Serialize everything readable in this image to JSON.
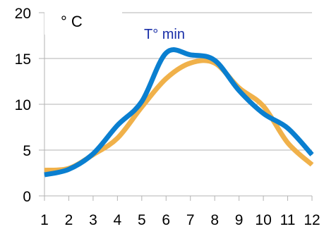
{
  "chart_data": {
    "type": "line",
    "unit_label": "° C",
    "x": [
      1,
      2,
      3,
      4,
      5,
      6,
      7,
      8,
      9,
      10,
      11,
      12
    ],
    "xlim": [
      1,
      12
    ],
    "ylim": [
      0,
      20
    ],
    "yticks": [
      0,
      5,
      10,
      15,
      20
    ],
    "grid": true,
    "series": [
      {
        "name": "T° min",
        "color": "#0a7fd0",
        "values": [
          2.3,
          2.9,
          4.6,
          7.7,
          10.3,
          15.6,
          15.4,
          14.8,
          11.5,
          9.0,
          7.4,
          4.5
        ]
      },
      {
        "color": "#f0b14a",
        "values": [
          2.8,
          3.0,
          4.5,
          6.3,
          9.7,
          12.8,
          14.5,
          14.5,
          11.8,
          9.8,
          5.8,
          3.4
        ]
      }
    ]
  }
}
